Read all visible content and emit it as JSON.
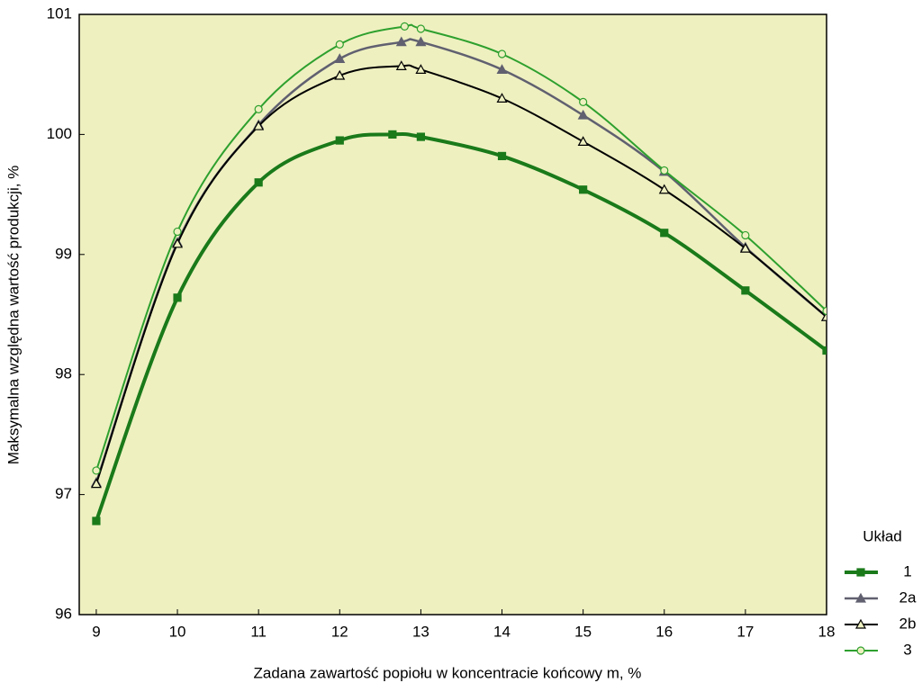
{
  "chart_data": {
    "type": "line",
    "xlabel": "Zadana zawartość popiołu w koncentracie końcowy m,  %",
    "ylabel": "Maksymalna względna wartość produkcji,  %",
    "legend_title": "Układ",
    "xlim": [
      8.79,
      18
    ],
    "ylim": [
      96,
      101
    ],
    "xticks": [
      9,
      10,
      11,
      12,
      13,
      14,
      15,
      16,
      17,
      18
    ],
    "yticks": [
      96,
      97,
      98,
      99,
      100,
      101
    ],
    "background": "#eef0c0",
    "series": [
      {
        "name": "1",
        "color": "#1a7a1a",
        "marker": "square",
        "width": 4,
        "x": [
          9,
          10,
          11,
          12,
          12.65,
          13,
          14,
          15,
          16,
          17,
          18
        ],
        "values": [
          96.78,
          98.64,
          99.6,
          99.95,
          100.0,
          99.98,
          99.82,
          99.54,
          99.18,
          98.7,
          98.2
        ]
      },
      {
        "name": "2a",
        "color": "#606070",
        "marker": "triangle",
        "width": 2.5,
        "x": [
          9,
          10,
          11,
          12,
          12.76,
          13,
          14,
          15,
          16,
          17,
          18
        ],
        "values": [
          97.1,
          99.1,
          100.08,
          100.63,
          100.77,
          100.77,
          100.54,
          100.16,
          99.69,
          99.06,
          98.48
        ]
      },
      {
        "name": "2b",
        "color": "#000000",
        "marker": "open-triangle",
        "width": 2,
        "x": [
          9,
          10,
          11,
          12,
          12.76,
          13,
          14,
          15,
          16,
          17,
          18
        ],
        "values": [
          97.09,
          99.09,
          100.07,
          100.49,
          100.57,
          100.54,
          100.3,
          99.94,
          99.54,
          99.05,
          98.48
        ]
      },
      {
        "name": "3",
        "color": "#2ea02e",
        "marker": "open-circle",
        "width": 2,
        "x": [
          9,
          10,
          11,
          12,
          12.8,
          13,
          14,
          15,
          16,
          17,
          18
        ],
        "values": [
          97.2,
          99.19,
          100.21,
          100.75,
          100.9,
          100.88,
          100.67,
          100.27,
          99.7,
          99.16,
          98.53
        ]
      }
    ]
  }
}
